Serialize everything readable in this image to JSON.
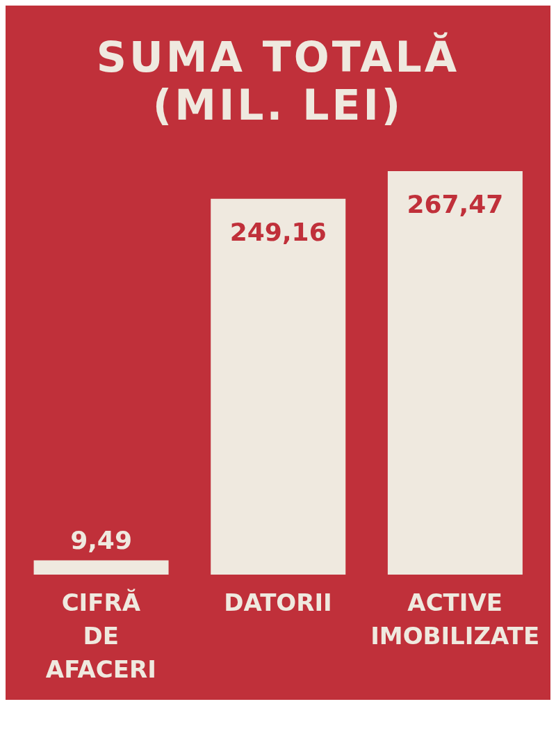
{
  "chart_data": {
    "type": "bar",
    "title": "SUMA TOTALĂ (MIL. LEI)",
    "categories": [
      "CIFRĂ DE AFACERI",
      "DATORII",
      "ACTIVE IMOBILIZATE"
    ],
    "values": [
      9.49,
      249.16,
      267.47
    ],
    "value_labels": [
      "9,49",
      "249,16",
      "267,47"
    ],
    "color": "#efe9df",
    "grid": false,
    "legend": false
  }
}
